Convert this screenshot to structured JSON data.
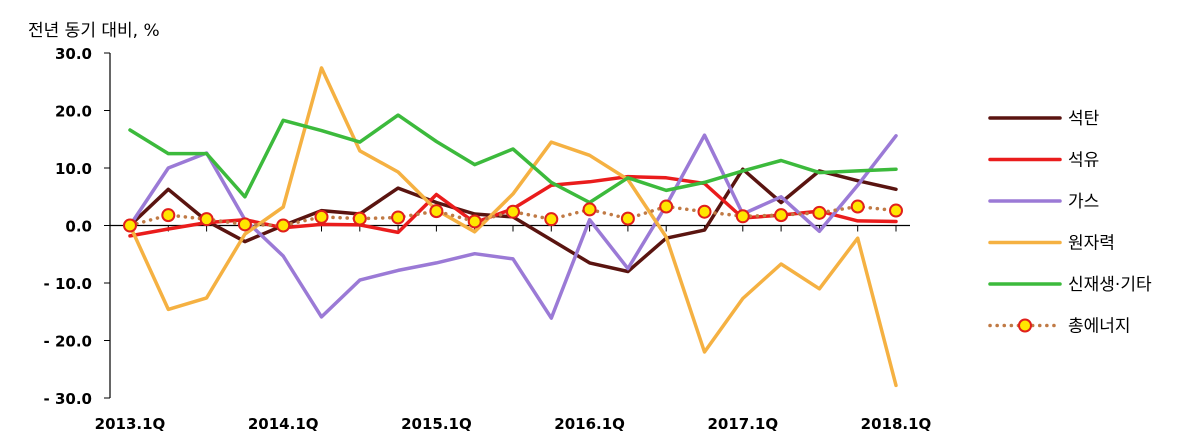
{
  "chart_data": {
    "type": "line",
    "ylabel": "전년 동기 대비, %",
    "xlabel": "",
    "ylim": [
      -30,
      30
    ],
    "yticks": [
      30,
      20,
      10,
      0,
      -10,
      -20,
      -30
    ],
    "ytick_labels": [
      "30.0",
      "20.0",
      "10.0",
      "0.0",
      "- 10.0",
      "- 20.0",
      "- 30.0"
    ],
    "x": [
      "2013.1Q",
      "2013.2Q",
      "2013.3Q",
      "2013.4Q",
      "2014.1Q",
      "2014.2Q",
      "2014.3Q",
      "2014.4Q",
      "2015.1Q",
      "2015.2Q",
      "2015.3Q",
      "2015.4Q",
      "2016.1Q",
      "2016.2Q",
      "2016.3Q",
      "2016.4Q",
      "2017.1Q",
      "2017.2Q",
      "2017.3Q",
      "2017.4Q",
      "2018.1Q"
    ],
    "xtick_labels": [
      "2013.1Q",
      "2014.1Q",
      "2015.1Q",
      "2016.1Q",
      "2017.1Q",
      "2018.1Q"
    ],
    "legend_position": "right",
    "grid": false,
    "series": [
      {
        "name": "석탄",
        "color": "#5a1410",
        "style": "solid",
        "values": [
          0.0,
          6.3,
          0.8,
          -2.8,
          0.0,
          2.6,
          2.0,
          6.5,
          4.0,
          2.0,
          1.5,
          -2.5,
          -6.5,
          -8.0,
          -2.2,
          -0.8,
          9.8,
          4.0,
          9.5,
          7.8,
          6.3
        ]
      },
      {
        "name": "석유",
        "color": "#ea1c1c",
        "style": "solid",
        "values": [
          -1.8,
          -0.6,
          0.5,
          1.0,
          -0.4,
          0.2,
          0.1,
          -1.2,
          5.4,
          0.5,
          2.9,
          7.0,
          7.6,
          8.5,
          8.3,
          7.3,
          1.3,
          1.8,
          2.5,
          0.8,
          0.7
        ]
      },
      {
        "name": "가스",
        "color": "#9b7ad6",
        "style": "solid",
        "values": [
          0.0,
          10.0,
          12.6,
          1.0,
          -5.3,
          -15.9,
          -9.5,
          -7.8,
          -6.5,
          -4.9,
          -5.8,
          -16.1,
          1.0,
          -7.5,
          3.5,
          15.7,
          2.0,
          5.0,
          -1.0,
          7.0,
          15.6
        ]
      },
      {
        "name": "원자력",
        "color": "#f5b142",
        "style": "solid",
        "values": [
          0.0,
          -14.6,
          -12.6,
          -1.5,
          3.2,
          27.4,
          13.0,
          9.3,
          2.7,
          -1.1,
          5.5,
          14.5,
          12.2,
          8.0,
          -2.0,
          -22.0,
          -12.7,
          -6.7,
          -11.0,
          -2.2,
          -27.8
        ]
      },
      {
        "name": "신재생·기타",
        "color": "#3cba3c",
        "style": "solid",
        "values": [
          16.6,
          12.5,
          12.5,
          5.0,
          18.3,
          16.5,
          14.5,
          19.2,
          14.6,
          10.6,
          13.3,
          7.5,
          4.0,
          8.3,
          6.1,
          7.5,
          9.5,
          11.3,
          9.2,
          9.5,
          9.8
        ]
      },
      {
        "name": "총에너지",
        "color": "#c07a45",
        "style": "dotted",
        "marker_fill": "#ffe600",
        "marker_edge": "#e0201b",
        "values": [
          0.0,
          1.8,
          1.1,
          0.2,
          0.0,
          1.5,
          1.2,
          1.4,
          2.5,
          0.7,
          2.4,
          1.1,
          2.8,
          1.2,
          3.3,
          2.4,
          1.6,
          1.8,
          2.2,
          3.3,
          2.6
        ]
      }
    ]
  }
}
